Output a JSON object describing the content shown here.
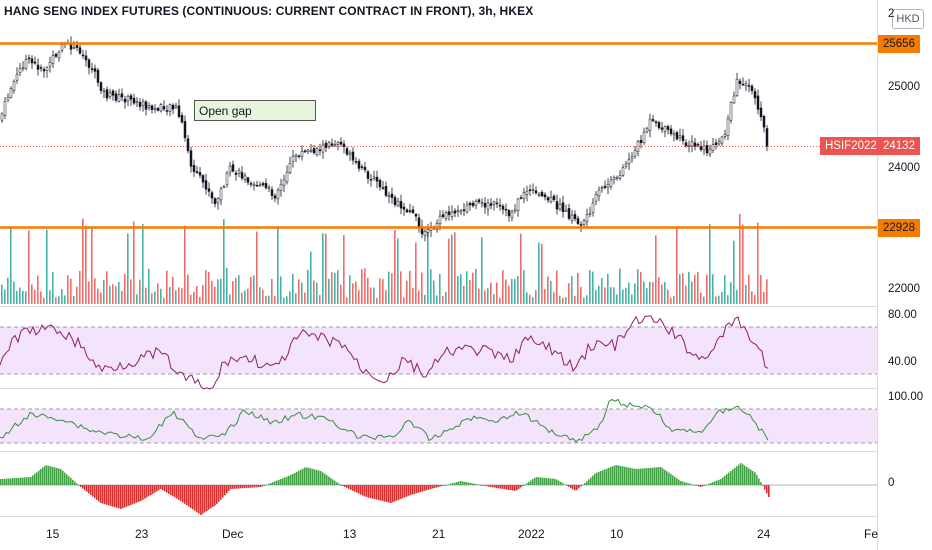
{
  "title": "HANG SENG INDEX FUTURES (CONTINUOUS: CURRENT CONTRACT IN FRONT), 3h, HKEX",
  "currency": "HKD",
  "annotation": "Open gap",
  "symbol_tag": "HSIF2022",
  "colors": {
    "up": "#26a69a",
    "down": "#ef5350",
    "orange": "#f57c00",
    "rsi": "#8e1d6f",
    "osc": "#388e3c",
    "band": "#f3e3fb"
  },
  "price_axis": {
    "top_cut": "2",
    "labels": [
      "25000",
      "24000",
      "22000"
    ],
    "levels": {
      "upper": "25656",
      "lower": "22928",
      "last": "24132"
    }
  },
  "rsi_axis": [
    "80.00",
    "40.00"
  ],
  "osc_axis": [
    "100.00"
  ],
  "macd_axis": [
    "0"
  ],
  "x_ticks": [
    "15",
    "23",
    "Dec",
    "13",
    "21",
    "2022",
    "10",
    "24",
    "Fe"
  ]
}
